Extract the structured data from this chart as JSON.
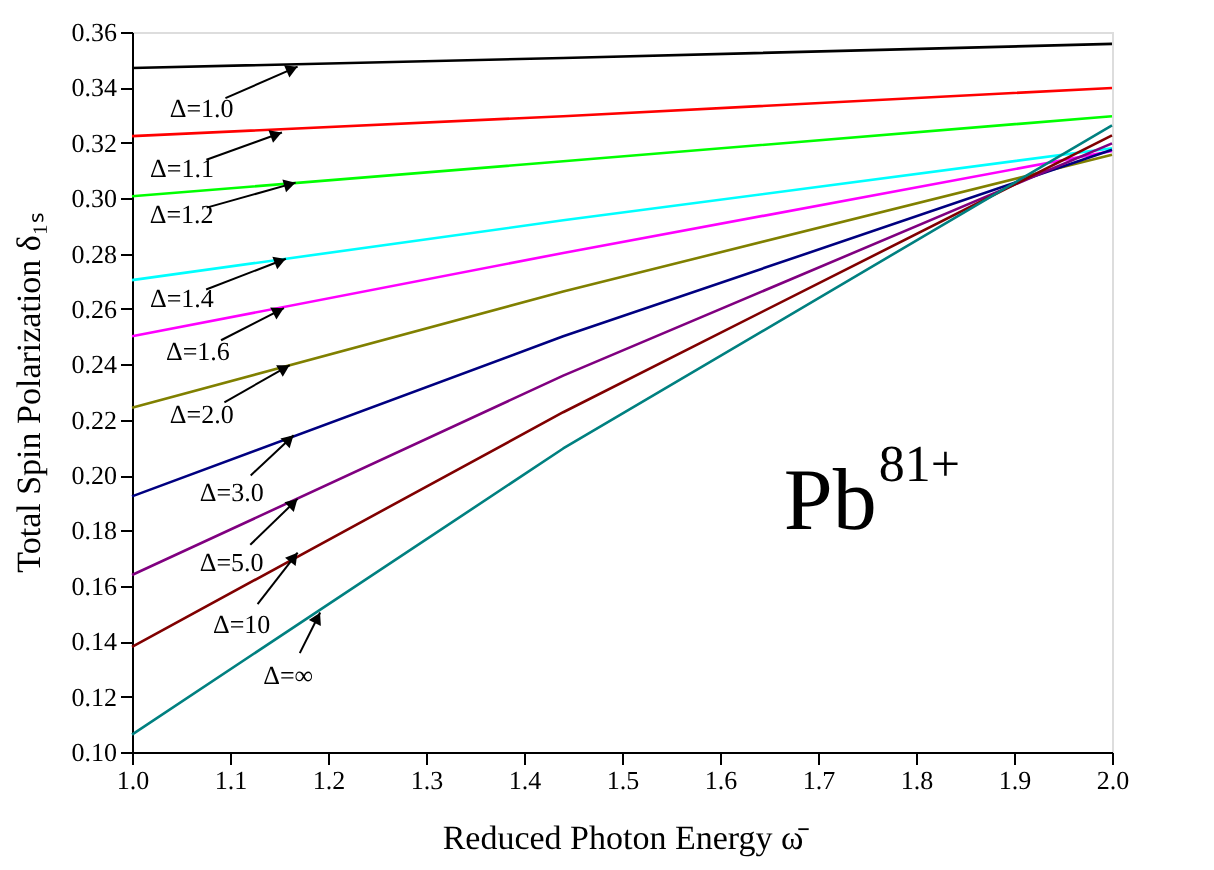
{
  "chart_data": {
    "type": "line",
    "xlabel": "Reduced Photon Energy  ω̄",
    "ylabel": "Total Spin Polarization  δ₁ₛ",
    "x": [
      1.0,
      1.44,
      2.0
    ],
    "series": [
      {
        "color": "#000000",
        "values": [
          0.347,
          0.3506,
          0.3557
        ]
      },
      {
        "color": "#ff0000",
        "values": [
          0.3224,
          0.3296,
          0.3398
        ]
      },
      {
        "color": "#00ff00",
        "values": [
          0.3007,
          0.3133,
          0.3296
        ]
      },
      {
        "color": "#00ffff",
        "values": [
          0.2704,
          0.292,
          0.318
        ]
      },
      {
        "color": "#ff00ff",
        "values": [
          0.2501,
          0.2802,
          0.317
        ]
      },
      {
        "color": "#808000",
        "values": [
          0.2243,
          0.2663,
          0.3157
        ]
      },
      {
        "color": "#000080",
        "values": [
          0.1923,
          0.2501,
          0.3175
        ]
      },
      {
        "color": "#800080",
        "values": [
          0.1639,
          0.2359,
          0.3198
        ]
      },
      {
        "color": "#800000",
        "values": [
          0.138,
          0.2227,
          0.3227
        ]
      },
      {
        "color": "#008080",
        "values": [
          0.1063,
          0.2096,
          0.3263
        ]
      }
    ],
    "annotations": [
      {
        "text": "Δ=1.0",
        "x": 1.169,
        "y": 0.3475
      },
      {
        "text": "Δ=1.1",
        "x": 1.153,
        "y": 0.3237
      },
      {
        "text": "Δ=1.2",
        "x": 1.167,
        "y": 0.3056
      },
      {
        "text": "Δ=1.4",
        "x": 1.157,
        "y": 0.2781
      },
      {
        "text": "Δ=1.6",
        "x": 1.155,
        "y": 0.2603
      },
      {
        "text": "Δ=2.0",
        "x": 1.161,
        "y": 0.2397
      },
      {
        "text": "Δ=3.0",
        "x": 1.165,
        "y": 0.2144
      },
      {
        "text": "Δ=5.0",
        "x": 1.169,
        "y": 0.1914
      },
      {
        "text": "Δ=10",
        "x": 1.169,
        "y": 0.172
      },
      {
        "text": "Δ=∞",
        "x": 1.192,
        "y": 0.1504
      },
      "Pb$^{81+}$"
    ],
    "xlim": [
      1.0,
      2.0
    ],
    "ylim": [
      0.1,
      0.36
    ],
    "xticks": [
      {
        "value": 1.0,
        "label": "1.0"
      },
      1.1,
      1.2,
      1.3,
      1.4,
      1.5,
      1.6,
      1.7,
      1.8,
      1.9,
      {
        "value": 2.0,
        "label": "2.0"
      }
    ],
    "yticks": [
      {
        "value": 0.1,
        "label": "0.10"
      },
      0.12,
      0.14,
      0.16,
      0.18,
      {
        "value": 0.2,
        "label": "0.20"
      },
      0.22,
      0.24,
      0.26,
      0.28,
      {
        "value": 0.3,
        "label": "0.30"
      },
      0.32,
      0.34,
      0.36
    ],
    "grid": false,
    "legend": false,
    "marker": "none",
    "line_style": "solid"
  }
}
